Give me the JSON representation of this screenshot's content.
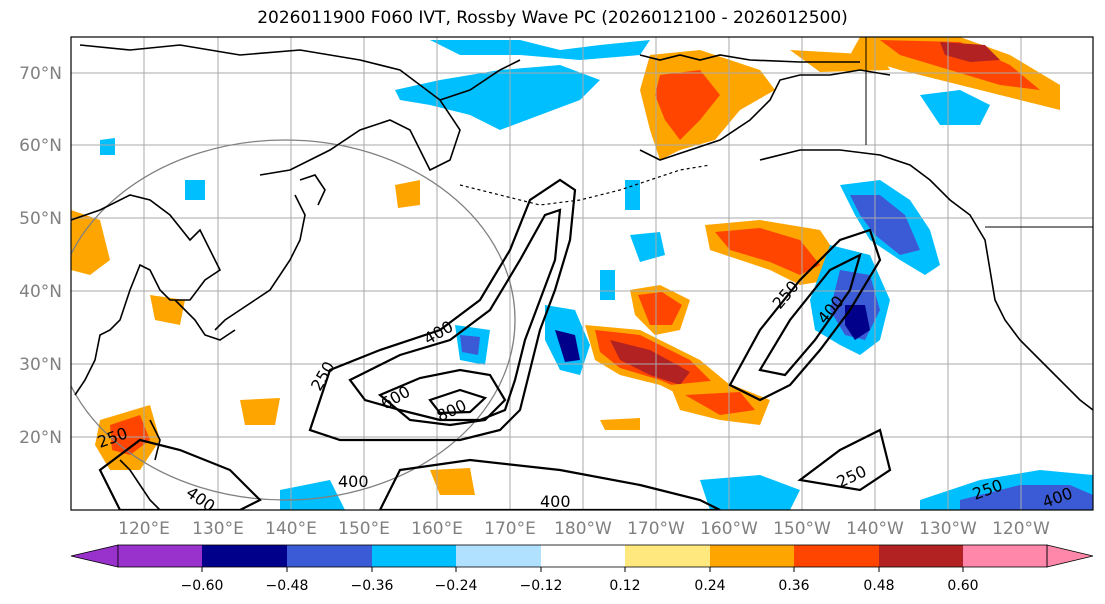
{
  "title": "2026011900 F060 IVT, Rossby Wave PC (2026012100 - 2026012500)",
  "map": {
    "lat_labels": [
      "70°N",
      "60°N",
      "50°N",
      "40°N",
      "30°N",
      "20°N"
    ],
    "lon_labels": [
      "120°E",
      "130°E",
      "140°E",
      "150°E",
      "160°E",
      "170°E",
      "180°W",
      "170°W",
      "160°W",
      "150°W",
      "140°W",
      "130°W",
      "120°W"
    ],
    "ivt_contour_levels": [
      "250",
      "400",
      "600",
      "800"
    ]
  },
  "colorbar": {
    "tick_labels": [
      "−0.60",
      "−0.48",
      "−0.36",
      "−0.24",
      "−0.12",
      "0.12",
      "0.24",
      "0.36",
      "0.48",
      "0.60"
    ],
    "colors": [
      "#9932cc",
      "#00008b",
      "#3b5bd6",
      "#00bfff",
      "#b0e2ff",
      "#ffffff",
      "#ffe97f",
      "#ffa500",
      "#ff4500",
      "#b22222",
      "#ff88aa"
    ]
  },
  "colors": {
    "grid": "#a9a9a9",
    "coast": "#000000",
    "circle": "#808080"
  }
}
